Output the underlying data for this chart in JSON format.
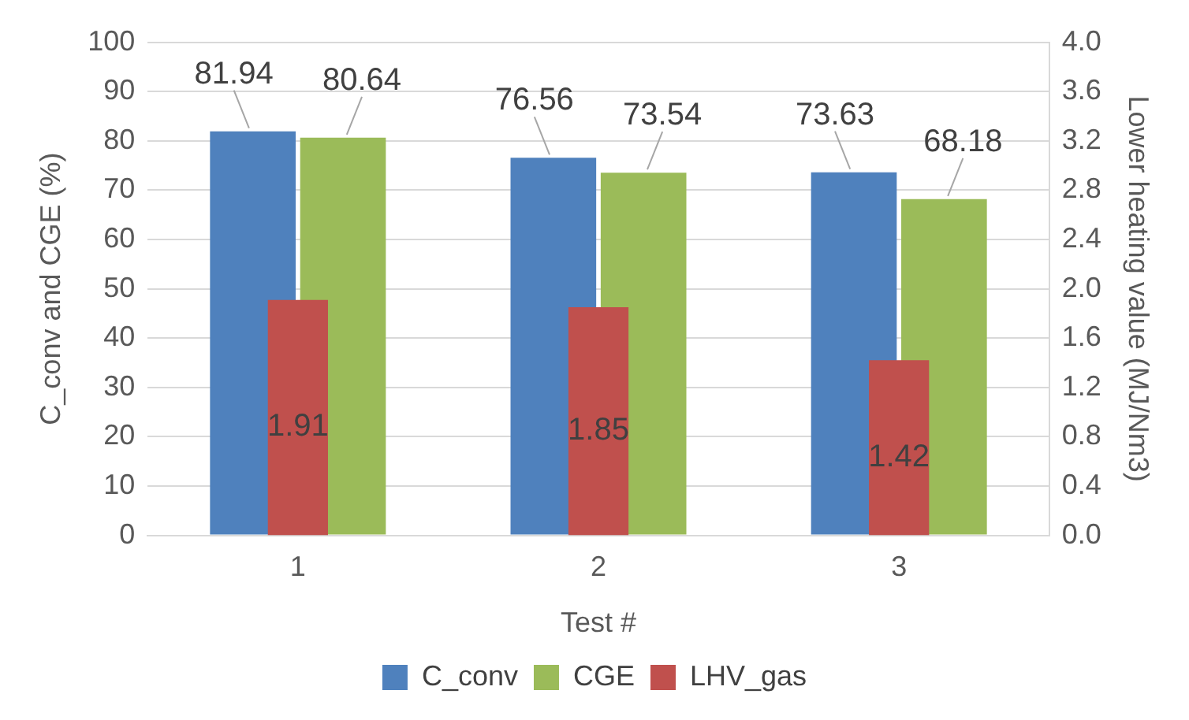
{
  "chart_data": {
    "type": "bar",
    "xlabel": "Test #",
    "ylabel": "C_conv and CGE (%)",
    "y2label": "Lower heating value (MJ/Nm3)",
    "categories": [
      "1",
      "2",
      "3"
    ],
    "series": [
      {
        "name": "C_conv",
        "color": "#4f81bd",
        "values": [
          81.94,
          76.56,
          73.63
        ]
      },
      {
        "name": "CGE",
        "color": "#9bbb59",
        "values": [
          80.64,
          73.54,
          68.18
        ]
      },
      {
        "name": "LHV_gas",
        "color": "#c0504d",
        "values": [
          1.91,
          1.85,
          1.42
        ],
        "axis": "y2"
      }
    ],
    "ylim": [
      0,
      100
    ],
    "yticks": [
      0,
      10,
      20,
      30,
      40,
      50,
      60,
      70,
      80,
      90,
      100
    ],
    "y2lim": [
      0,
      4
    ],
    "y2ticks": [
      {
        "value": 0,
        "label": "0.0"
      },
      {
        "value": 0.4,
        "label": "0.4"
      },
      {
        "value": 0.8,
        "label": "0.8"
      },
      {
        "value": 1.2,
        "label": "1.2"
      },
      {
        "value": 1.6,
        "label": "1.6"
      },
      {
        "value": 2,
        "label": "2.0"
      },
      {
        "value": 2.4,
        "label": "2.4"
      },
      {
        "value": 2.8,
        "label": "2.8"
      },
      {
        "value": 3.2,
        "label": "3.2"
      },
      {
        "value": 3.6,
        "label": "3.6"
      },
      {
        "value": 4,
        "label": "4.0"
      }
    ],
    "grid": "y",
    "legend": "bottom",
    "data_labels": true
  }
}
